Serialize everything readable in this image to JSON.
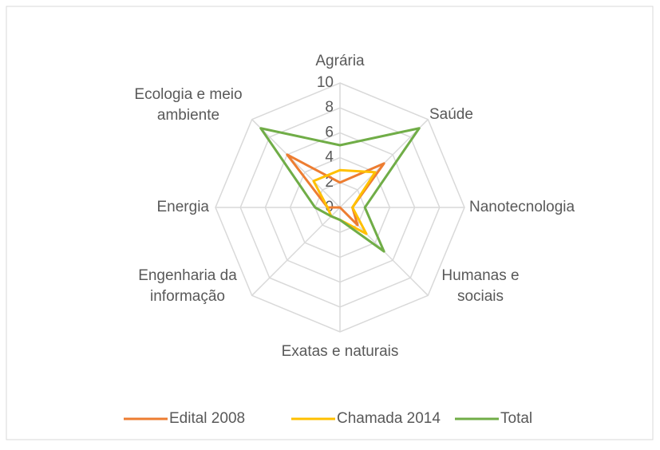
{
  "chart_data": {
    "type": "radar",
    "categories": [
      "Agrária",
      "Saúde",
      "Nanotecnologia",
      "Humanas e sociais",
      "Exatas e naturais",
      "Engenharia da informação",
      "Energia",
      "Ecologia e meio ambiente"
    ],
    "series": [
      {
        "name": "Edital 2008",
        "color": "#ed7d31",
        "values": [
          2,
          5,
          1,
          2,
          0,
          0,
          1,
          6
        ]
      },
      {
        "name": "Chamada 2014",
        "color": "#ffc000",
        "values": [
          3,
          4,
          1,
          3,
          1,
          1,
          1,
          3
        ]
      },
      {
        "name": "Total",
        "color": "#70ad47",
        "values": [
          5,
          9,
          2,
          5,
          1,
          1,
          2,
          9
        ]
      }
    ],
    "ylim": [
      0,
      10
    ],
    "yticks": [
      0,
      2,
      4,
      6,
      8,
      10
    ],
    "grid": true,
    "legend": "bottom"
  }
}
